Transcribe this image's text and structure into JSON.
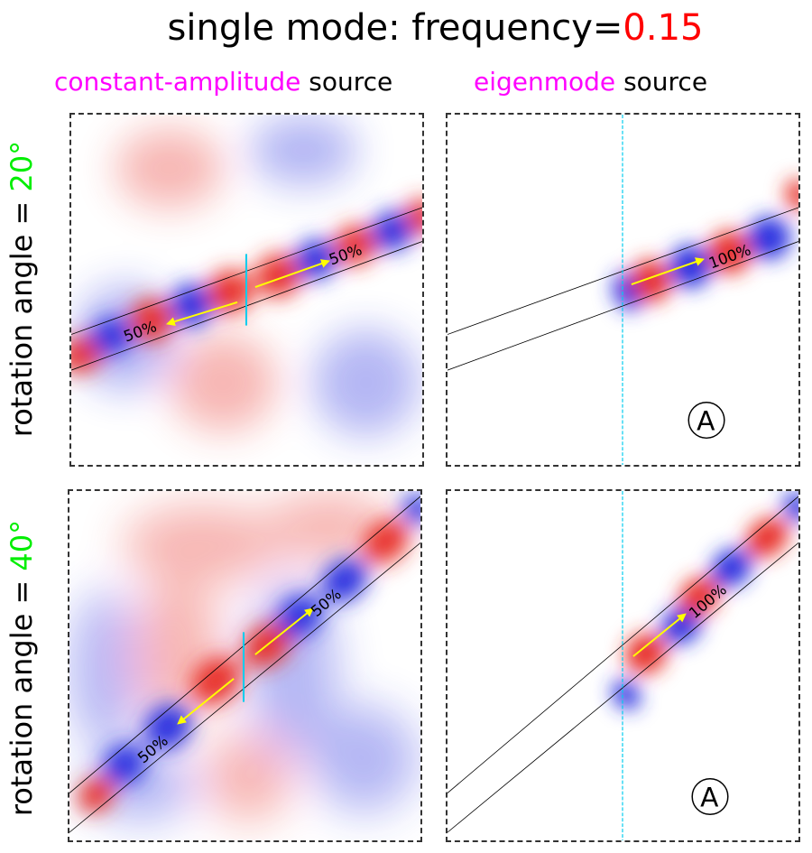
{
  "title": {
    "prefix": "single mode: frequency=",
    "frequency": "0.15"
  },
  "columns": [
    {
      "highlight": "constant-amplitude",
      "rest": " source"
    },
    {
      "highlight": "eigenmode",
      "rest": " source"
    }
  ],
  "rows": [
    {
      "prefix": "rotation angle = ",
      "angle": "20°"
    },
    {
      "prefix": "rotation angle = ",
      "angle": "40°"
    }
  ],
  "panels": {
    "p11": {
      "left_label": "50%",
      "right_label": "50%"
    },
    "p12": {
      "label": "100%",
      "marker": "A"
    },
    "p21": {
      "left_label": "50%",
      "right_label": "50%"
    },
    "p22": {
      "label": "100%",
      "marker": "A"
    }
  },
  "colors": {
    "positive": "#e8302a",
    "negative": "#2a33e0",
    "arrow": "#ffff00",
    "source_line": "#00ccee",
    "label_magenta": "#ff00ff",
    "angle_green": "#00ee00",
    "frequency_red": "#ff0000"
  }
}
